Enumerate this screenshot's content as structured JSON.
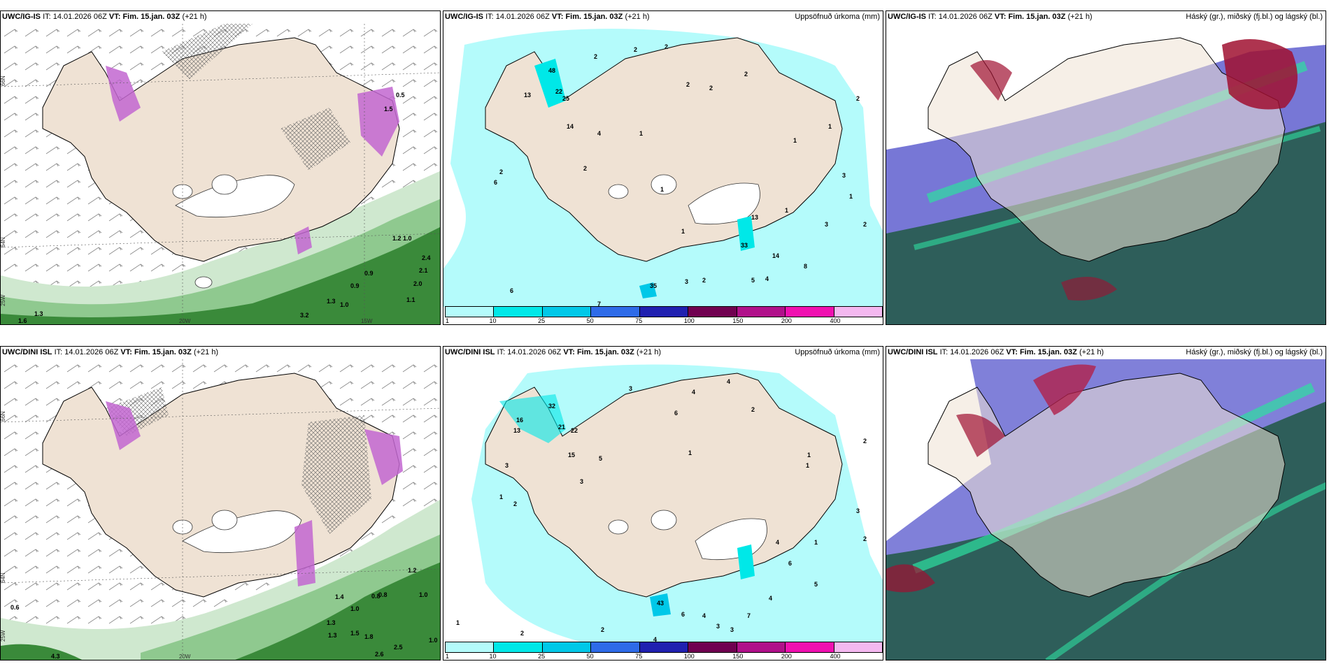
{
  "rows": [
    {
      "model": "UWC/IG-IS",
      "it_label": "IT:",
      "it_value": "14.01.2026 06Z",
      "vt_label": "VT:",
      "vt_value": "Fim. 15.jan. 03Z",
      "lead": "(+21 h)"
    },
    {
      "model": "UWC/DINI ISL",
      "it_label": "IT:",
      "it_value": "14.01.2026 06Z",
      "vt_label": "VT:",
      "vt_value": "Fim. 15.jan. 03Z",
      "lead": "(+21 h)"
    }
  ],
  "precip_title": "Uppsöfnuð úrkoma (mm)",
  "cloud_title": "Háský (gr.), miðský (fj.bl.) og lágský (bl.)",
  "colorbar": {
    "colors": [
      "#b4fbfb",
      "#00e8e8",
      "#00c8e8",
      "#2e6be8",
      "#2020b0",
      "#700050",
      "#b0108a",
      "#f010b0",
      "#f4b8f0"
    ],
    "labels": [
      "1",
      "10",
      "25",
      "50",
      "75",
      "100",
      "150",
      "200",
      "400"
    ]
  },
  "lat_labels": {
    "n66": "66N",
    "n64": "64N",
    "w25": "25W",
    "w20": "20W",
    "w15": "15W"
  },
  "wind_values_top": [
    "0.5",
    "1.5",
    "1.0",
    "1.2",
    "2.4",
    "2.1",
    "2.0",
    "0.9",
    "0.9",
    "1.0",
    "1.3",
    "1.1",
    "3.2",
    "1.3",
    "1.6"
  ],
  "wind_values_bottom": [
    "0.6",
    "1.4",
    "1.0",
    "0.8",
    "0.8",
    "1.0",
    "1.3",
    "1.3",
    "1.5",
    "1.8",
    "2.6",
    "2.5",
    "1.0",
    "1.2",
    "4.3"
  ],
  "precip_values_top": [
    "2",
    "2",
    "2",
    "2",
    "2",
    "2",
    "2",
    "13",
    "48",
    "22",
    "25",
    "14",
    "4",
    "1",
    "1",
    "2",
    "2",
    "6",
    "1",
    "1",
    "3",
    "1",
    "1",
    "1",
    "13",
    "33",
    "14",
    "3",
    "2",
    "5",
    "4",
    "8",
    "6",
    "7",
    "35",
    "3",
    "2"
  ],
  "precip_values_bottom": [
    "3",
    "4",
    "4",
    "6",
    "2",
    "2",
    "1",
    "16",
    "13",
    "32",
    "21",
    "22",
    "15",
    "5",
    "3",
    "1",
    "2",
    "3",
    "1",
    "1",
    "1",
    "2",
    "3",
    "4",
    "43",
    "6",
    "4",
    "3",
    "3",
    "7",
    "4",
    "5",
    "2",
    "4",
    "1",
    "2",
    "6"
  ]
}
